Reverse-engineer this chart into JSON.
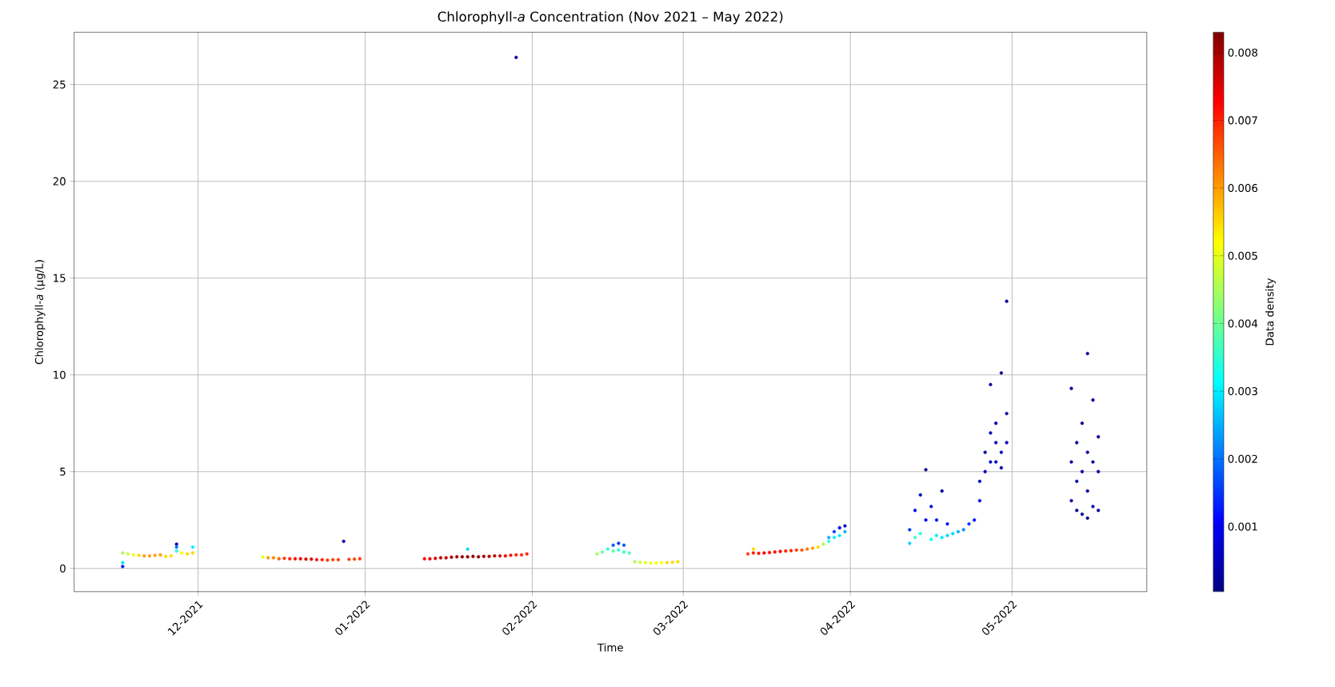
{
  "chart_data": {
    "type": "scatter",
    "title": "Chlorophyll-*a* Concentration (Nov 2021 – May 2022)",
    "xlabel": "Time",
    "ylabel": "Chlorophyll-*a* (μg/L)",
    "clabel": "Data density",
    "marker": "circle",
    "grid": true,
    "xlim": [
      "2021-11-08",
      "2022-05-26"
    ],
    "xticks": [
      {
        "value": "2021-12-01",
        "label": "12-2021"
      },
      {
        "value": "2022-01-01",
        "label": "01-2022"
      },
      {
        "value": "2022-02-01",
        "label": "02-2022"
      },
      {
        "value": "2022-03-01",
        "label": "03-2022"
      },
      {
        "value": "2022-04-01",
        "label": "04-2022"
      },
      {
        "value": "2022-05-01",
        "label": "05-2022"
      }
    ],
    "ylim": [
      -1.2,
      27.7
    ],
    "yticks": [
      0,
      5,
      10,
      15,
      20,
      25
    ],
    "clim": [
      4e-05,
      0.0083
    ],
    "cticks": [
      0.001,
      0.002,
      0.003,
      0.004,
      0.005,
      0.006,
      0.007,
      0.008
    ],
    "x": [
      "2021-11-17",
      "2021-11-17",
      "2021-11-17",
      "2021-11-18",
      "2021-11-19",
      "2021-11-20",
      "2021-11-21",
      "2021-11-22",
      "2021-11-23",
      "2021-11-24",
      "2021-11-25",
      "2021-11-26",
      "2021-11-27",
      "2021-11-27",
      "2021-11-27",
      "2021-11-28",
      "2021-11-29",
      "2021-11-30",
      "2021-11-30",
      "2021-12-13",
      "2021-12-14",
      "2021-12-15",
      "2021-12-16",
      "2021-12-17",
      "2021-12-18",
      "2021-12-19",
      "2021-12-20",
      "2021-12-21",
      "2021-12-22",
      "2021-12-23",
      "2021-12-24",
      "2021-12-25",
      "2021-12-26",
      "2021-12-27",
      "2021-12-28",
      "2021-12-29",
      "2021-12-30",
      "2021-12-31",
      "2022-01-12",
      "2022-01-13",
      "2022-01-14",
      "2022-01-15",
      "2022-01-16",
      "2022-01-17",
      "2022-01-18",
      "2022-01-19",
      "2022-01-20",
      "2022-01-20",
      "2022-01-21",
      "2022-01-22",
      "2022-01-23",
      "2022-01-24",
      "2022-01-25",
      "2022-01-26",
      "2022-01-27",
      "2022-01-28",
      "2022-01-29",
      "2022-01-29",
      "2022-01-30",
      "2022-01-31",
      "2022-02-13",
      "2022-02-14",
      "2022-02-15",
      "2022-02-16",
      "2022-02-16",
      "2022-02-17",
      "2022-02-17",
      "2022-02-18",
      "2022-02-18",
      "2022-02-19",
      "2022-02-20",
      "2022-02-21",
      "2022-02-22",
      "2022-02-23",
      "2022-02-24",
      "2022-02-25",
      "2022-02-26",
      "2022-02-27",
      "2022-02-28",
      "2022-03-13",
      "2022-03-14",
      "2022-03-14",
      "2022-03-15",
      "2022-03-16",
      "2022-03-17",
      "2022-03-18",
      "2022-03-19",
      "2022-03-20",
      "2022-03-21",
      "2022-03-22",
      "2022-03-23",
      "2022-03-24",
      "2022-03-25",
      "2022-03-26",
      "2022-03-27",
      "2022-03-28",
      "2022-03-28",
      "2022-03-29",
      "2022-03-29",
      "2022-03-30",
      "2022-03-30",
      "2022-03-31",
      "2022-03-31",
      "2022-04-12",
      "2022-04-12",
      "2022-04-13",
      "2022-04-13",
      "2022-04-14",
      "2022-04-14",
      "2022-04-15",
      "2022-04-15",
      "2022-04-16",
      "2022-04-16",
      "2022-04-17",
      "2022-04-17",
      "2022-04-18",
      "2022-04-18",
      "2022-04-19",
      "2022-04-19",
      "2022-04-20",
      "2022-04-21",
      "2022-04-22",
      "2022-04-23",
      "2022-04-24",
      "2022-04-25",
      "2022-04-25",
      "2022-04-26",
      "2022-04-26",
      "2022-04-27",
      "2022-04-27",
      "2022-04-27",
      "2022-04-28",
      "2022-04-28",
      "2022-04-28",
      "2022-04-29",
      "2022-04-29",
      "2022-04-29",
      "2022-04-30",
      "2022-04-30",
      "2022-04-30",
      "2022-05-12",
      "2022-05-12",
      "2022-05-12",
      "2022-05-13",
      "2022-05-13",
      "2022-05-13",
      "2022-05-14",
      "2022-05-14",
      "2022-05-14",
      "2022-05-15",
      "2022-05-15",
      "2022-05-15",
      "2022-05-15",
      "2022-05-16",
      "2022-05-16",
      "2022-05-16",
      "2022-05-17",
      "2022-05-17",
      "2022-05-17"
    ],
    "values": [
      0.1,
      0.3,
      0.8,
      0.75,
      0.7,
      0.68,
      0.65,
      0.65,
      0.68,
      0.7,
      0.62,
      0.65,
      1.25,
      1.1,
      0.9,
      0.8,
      0.75,
      0.8,
      1.1,
      0.6,
      0.55,
      0.55,
      0.5,
      0.52,
      0.5,
      0.5,
      0.5,
      0.48,
      0.48,
      0.45,
      0.45,
      0.43,
      0.45,
      0.45,
      1.4,
      0.47,
      0.48,
      0.5,
      0.5,
      0.5,
      0.52,
      0.55,
      0.55,
      0.58,
      0.6,
      0.6,
      0.6,
      1.0,
      0.62,
      0.6,
      0.62,
      0.62,
      0.65,
      0.65,
      0.65,
      0.68,
      0.7,
      26.4,
      0.7,
      0.75,
      0.75,
      0.85,
      1.0,
      1.2,
      0.9,
      1.3,
      0.95,
      1.2,
      0.85,
      0.8,
      0.35,
      0.32,
      0.3,
      0.28,
      0.28,
      0.3,
      0.3,
      0.32,
      0.35,
      0.75,
      0.8,
      1.0,
      0.78,
      0.8,
      0.82,
      0.85,
      0.88,
      0.9,
      0.92,
      0.95,
      0.95,
      1.0,
      1.05,
      1.1,
      1.25,
      1.4,
      1.6,
      1.6,
      1.9,
      1.7,
      2.1,
      1.9,
      2.2,
      1.3,
      2.0,
      1.6,
      3.0,
      1.8,
      3.8,
      2.5,
      5.1,
      1.5,
      3.2,
      1.7,
      2.5,
      1.6,
      4.0,
      1.7,
      2.3,
      1.8,
      1.9,
      2.0,
      2.3,
      2.5,
      3.5,
      4.5,
      5.0,
      6.0,
      5.5,
      7.0,
      9.5,
      5.5,
      6.5,
      7.5,
      6.0,
      10.1,
      5.2,
      6.5,
      8.0,
      13.8,
      3.5,
      5.5,
      9.3,
      3.0,
      4.5,
      6.5,
      2.8,
      5.0,
      7.5,
      2.6,
      4.0,
      6.0,
      11.1,
      3.2,
      5.5,
      8.7,
      3.0,
      5.0,
      6.8
    ],
    "cvalues": [
      0.0012,
      0.003,
      0.0045,
      0.0048,
      0.005,
      0.0055,
      0.006,
      0.006,
      0.006,
      0.006,
      0.0055,
      0.0055,
      0.0005,
      0.002,
      0.0035,
      0.0052,
      0.0055,
      0.0055,
      0.003,
      0.005,
      0.006,
      0.0062,
      0.0065,
      0.0068,
      0.007,
      0.0072,
      0.0074,
      0.0075,
      0.0076,
      0.0072,
      0.007,
      0.0068,
      0.0068,
      0.0068,
      0.0002,
      0.0068,
      0.0068,
      0.0068,
      0.0072,
      0.0074,
      0.0076,
      0.0078,
      0.0078,
      0.008,
      0.008,
      0.0082,
      0.0082,
      0.0028,
      0.0082,
      0.0082,
      0.008,
      0.0078,
      0.0078,
      0.0076,
      0.0074,
      0.0072,
      0.007,
      0.0002,
      0.007,
      0.007,
      0.0045,
      0.004,
      0.0035,
      0.0018,
      0.0038,
      0.0015,
      0.0035,
      0.0018,
      0.0035,
      0.0038,
      0.0045,
      0.0048,
      0.005,
      0.005,
      0.0052,
      0.0052,
      0.0055,
      0.0055,
      0.0055,
      0.0068,
      0.007,
      0.0055,
      0.0072,
      0.0072,
      0.0072,
      0.0072,
      0.0072,
      0.007,
      0.007,
      0.0068,
      0.0066,
      0.0063,
      0.006,
      0.0055,
      0.0045,
      0.0035,
      0.0025,
      0.003,
      0.0015,
      0.003,
      0.0008,
      0.0025,
      0.0005,
      0.0028,
      0.0015,
      0.0035,
      0.0008,
      0.0035,
      0.0005,
      0.001,
      0.0002,
      0.0032,
      0.0008,
      0.003,
      0.0012,
      0.003,
      0.0003,
      0.0028,
      0.0012,
      0.0028,
      0.0025,
      0.0022,
      0.0015,
      0.0012,
      0.0008,
      0.0005,
      0.0006,
      0.0004,
      0.0006,
      0.0004,
      0.0002,
      0.0006,
      0.0006,
      0.0004,
      0.0006,
      0.0002,
      0.0004,
      0.0005,
      0.0003,
      0.0002,
      0.0003,
      0.0003,
      0.0002,
      0.0003,
      0.0004,
      0.0003,
      0.0003,
      0.0004,
      0.0002,
      0.0002,
      0.0004,
      0.0003,
      0.0002,
      0.0003,
      0.0004,
      0.0002,
      0.0003,
      0.0003,
      0.0002
    ]
  }
}
